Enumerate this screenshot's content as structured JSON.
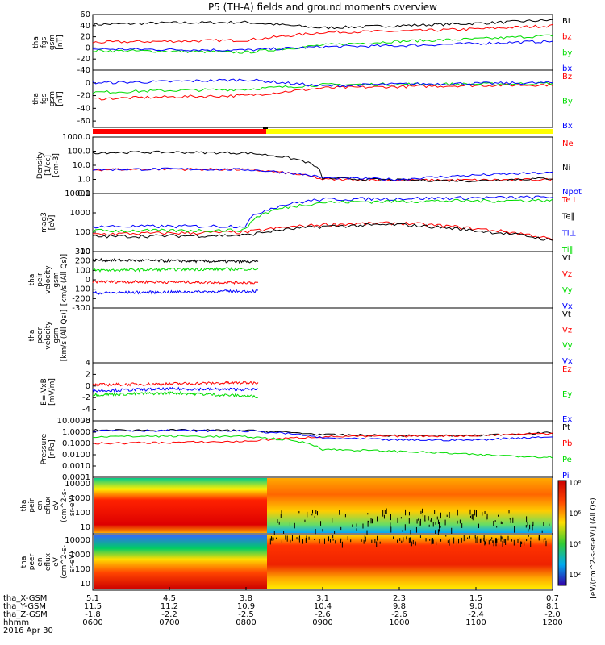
{
  "title": "P5 (TH-A) fields and ground moments overview",
  "colors": {
    "black": "#000000",
    "red": "#ff0000",
    "green": "#00dd00",
    "blue": "#0000ff",
    "status_red": "#ff0000",
    "status_yellow": "#ffff00"
  },
  "x_axis": {
    "rows": [
      {
        "label": "tha_X-GSM",
        "values": [
          "5.1",
          "4.5",
          "3.8",
          "3.1",
          "2.3",
          "1.5",
          "0.7"
        ]
      },
      {
        "label": "tha_Y-GSM",
        "values": [
          "11.5",
          "11.2",
          "10.9",
          "10.4",
          "9.8",
          "9.0",
          "8.1"
        ]
      },
      {
        "label": "tha_Z-GSM",
        "values": [
          "-1.8",
          "-2.2",
          "-2.5",
          "-2.6",
          "-2.6",
          "-2.4",
          "-2.0"
        ]
      },
      {
        "label": "hhmm",
        "values": [
          "0600",
          "0700",
          "0800",
          "0900",
          "1000",
          "1100",
          "1200"
        ]
      }
    ],
    "date": "2016 Apr 30"
  },
  "chart_data": [
    {
      "type": "line",
      "id": "fgs_gsm",
      "ylabel": [
        "tha",
        "fgs",
        "gsm",
        "[nT]"
      ],
      "ylim": [
        -40,
        60
      ],
      "yticks": [
        "60",
        "40",
        "20",
        "0",
        "-20",
        "-40"
      ],
      "x": [
        "0600",
        "0700",
        "0800",
        "0900",
        "1000",
        "1100",
        "1200"
      ],
      "series": [
        {
          "name": "Bt",
          "color": "black",
          "values": [
            42,
            45,
            46,
            36,
            40,
            44,
            50
          ]
        },
        {
          "name": "bz",
          "color": "red",
          "values": [
            10,
            12,
            14,
            28,
            30,
            34,
            40
          ]
        },
        {
          "name": "by",
          "color": "green",
          "values": [
            -5,
            -6,
            -8,
            5,
            12,
            16,
            22
          ]
        },
        {
          "name": "bx",
          "color": "blue",
          "values": [
            -2,
            -3,
            -4,
            2,
            4,
            8,
            12
          ]
        }
      ]
    },
    {
      "type": "line",
      "id": "fgs_dsl",
      "ylabel": [
        "tha",
        "fgs",
        "gsm",
        "[nT]"
      ],
      "ylim": [
        -70,
        20
      ],
      "yticks": [
        "0",
        "-20",
        "-40",
        "-60"
      ],
      "x": [
        "0600",
        "0700",
        "0800",
        "0900",
        "1000",
        "1100",
        "1200"
      ],
      "series": [
        {
          "name": "Bz",
          "color": "red",
          "values": [
            -25,
            -22,
            -20,
            -8,
            -6,
            -4,
            -3
          ]
        },
        {
          "name": "By",
          "color": "green",
          "values": [
            -15,
            -12,
            -10,
            -3,
            -2,
            -2,
            -1
          ]
        },
        {
          "name": "Bx",
          "color": "blue",
          "values": [
            0,
            2,
            5,
            -5,
            -2,
            -1,
            0
          ]
        }
      ]
    },
    {
      "type": "line",
      "id": "density",
      "ylog": true,
      "ylabel": [
        "Density",
        "[1/cc]",
        "[cm-3]"
      ],
      "ylim": [
        0.1,
        1000
      ],
      "yticks": [
        "1000.0",
        "100.0",
        "10.0",
        "1.0",
        "0.1"
      ],
      "x": [
        "0600",
        "0700",
        "0800",
        "0900",
        "1000",
        "1100",
        "1200"
      ],
      "series": [
        {
          "name": "Ne",
          "color": "red",
          "values": [
            5,
            5.5,
            5,
            1,
            0.9,
            0.9,
            1
          ]
        },
        {
          "name": "Ni",
          "color": "black",
          "values": [
            80,
            85,
            75,
            1.2,
            0.9,
            0.8,
            1.2
          ]
        },
        {
          "name": "Npot",
          "color": "blue",
          "values": [
            5,
            5.5,
            5,
            1.3,
            1,
            2,
            3
          ]
        }
      ]
    },
    {
      "type": "line",
      "id": "temperature",
      "ylog": true,
      "ylabel": [
        "mag3",
        "[eV]"
      ],
      "ylim": [
        10,
        10000
      ],
      "yticks": [
        "10000",
        "1000",
        "100",
        "10"
      ],
      "x": [
        "0600",
        "0700",
        "0800",
        "0900",
        "1000",
        "1100",
        "1200"
      ],
      "series": [
        {
          "name": "Te⊥",
          "color": "red",
          "values": [
            80,
            90,
            100,
            250,
            300,
            150,
            40
          ]
        },
        {
          "name": "Te∥",
          "color": "black",
          "values": [
            60,
            65,
            70,
            200,
            250,
            120,
            35
          ]
        },
        {
          "name": "Ti⊥",
          "color": "blue",
          "values": [
            200,
            200,
            210,
            5000,
            5500,
            6000,
            6500
          ]
        },
        {
          "name": "Ti∥",
          "color": "green",
          "values": [
            120,
            120,
            130,
            3500,
            4000,
            4200,
            4500
          ]
        }
      ]
    },
    {
      "type": "line",
      "id": "peir_velocity",
      "ylabel": [
        "tha",
        "peir",
        "velocity",
        "gsm",
        "[km/s (All Qs)]"
      ],
      "ylim": [
        -300,
        300
      ],
      "yticks": [
        "300",
        "200",
        "100",
        "0",
        "-100",
        "-200",
        "-300"
      ],
      "x": [
        "0600",
        "0700",
        "0800"
      ],
      "series": [
        {
          "name": "Vt",
          "color": "black",
          "values": [
            210,
            200,
            190
          ]
        },
        {
          "name": "Vz",
          "color": "red",
          "values": [
            -20,
            -25,
            -30
          ]
        },
        {
          "name": "Vy",
          "color": "green",
          "values": [
            100,
            110,
            115
          ]
        },
        {
          "name": "Vx",
          "color": "blue",
          "values": [
            -140,
            -130,
            -120
          ]
        }
      ]
    },
    {
      "type": "line",
      "id": "peer_velocity",
      "ylabel": [
        "tha",
        "peer",
        "velocity",
        "gsm",
        "[km/s (All Qs)]"
      ],
      "series_labels": [
        "Vt",
        "Vz",
        "Vy",
        "Vx"
      ],
      "series": []
    },
    {
      "type": "line",
      "id": "efield",
      "ylabel": [
        "E=-VxB",
        "[mV/m]"
      ],
      "ylim": [
        -6,
        4
      ],
      "yticks": [
        "4",
        "2",
        "0",
        "-2",
        "-4",
        "-6"
      ],
      "x": [
        "0600",
        "0700",
        "0800"
      ],
      "series": [
        {
          "name": "Ez",
          "color": "red",
          "values": [
            0.2,
            0.4,
            0.6
          ]
        },
        {
          "name": "Ey",
          "color": "green",
          "values": [
            -1.5,
            -1.2,
            -1.8
          ]
        },
        {
          "name": "Ex",
          "color": "blue",
          "values": [
            -0.8,
            -0.5,
            -0.6
          ]
        }
      ]
    },
    {
      "type": "line",
      "id": "pressure",
      "ylog": true,
      "ylabel": [
        "Pressure",
        "[nPa]"
      ],
      "ylim": [
        0.0001,
        10
      ],
      "yticks": [
        "10.0000",
        "1.0000",
        "0.1000",
        "0.0100",
        "0.0010",
        "0.0001"
      ],
      "x": [
        "0600",
        "0700",
        "0800",
        "0900",
        "1000",
        "1100",
        "1200"
      ],
      "series": [
        {
          "name": "Pt",
          "color": "black",
          "values": [
            1.5,
            1.5,
            1.4,
            0.6,
            0.5,
            0.5,
            0.9
          ]
        },
        {
          "name": "Pb",
          "color": "red",
          "values": [
            0.1,
            0.12,
            0.15,
            0.4,
            0.45,
            0.5,
            0.8
          ]
        },
        {
          "name": "Pe",
          "color": "green",
          "values": [
            0.4,
            0.45,
            0.4,
            0.03,
            0.02,
            0.01,
            0.006
          ]
        },
        {
          "name": "Pi",
          "color": "blue",
          "values": [
            1.4,
            1.4,
            1.3,
            0.3,
            0.2,
            0.2,
            0.4
          ]
        }
      ]
    },
    {
      "type": "heatmap",
      "id": "peir_spectrum",
      "ylabel": [
        "tha",
        "peir",
        "en",
        "eflux",
        "eV",
        "(cm^2-s-",
        "sr-eV)"
      ],
      "yticks": [
        "10000",
        "1000",
        "100",
        "10"
      ]
    },
    {
      "type": "heatmap",
      "id": "peer_spectrum",
      "ylabel": [
        "tha",
        "peer",
        "en",
        "eflux",
        "eV",
        "(cm^2-s-",
        "sr-eV)"
      ],
      "yticks": [
        "10000",
        "1000",
        "100",
        "10"
      ]
    }
  ],
  "colorbar": {
    "ticks": [
      "10⁸",
      "10⁶",
      "10⁴",
      "10²"
    ],
    "label": "[eV/(cm^2-s-sr-eV)] (All Qs)"
  }
}
